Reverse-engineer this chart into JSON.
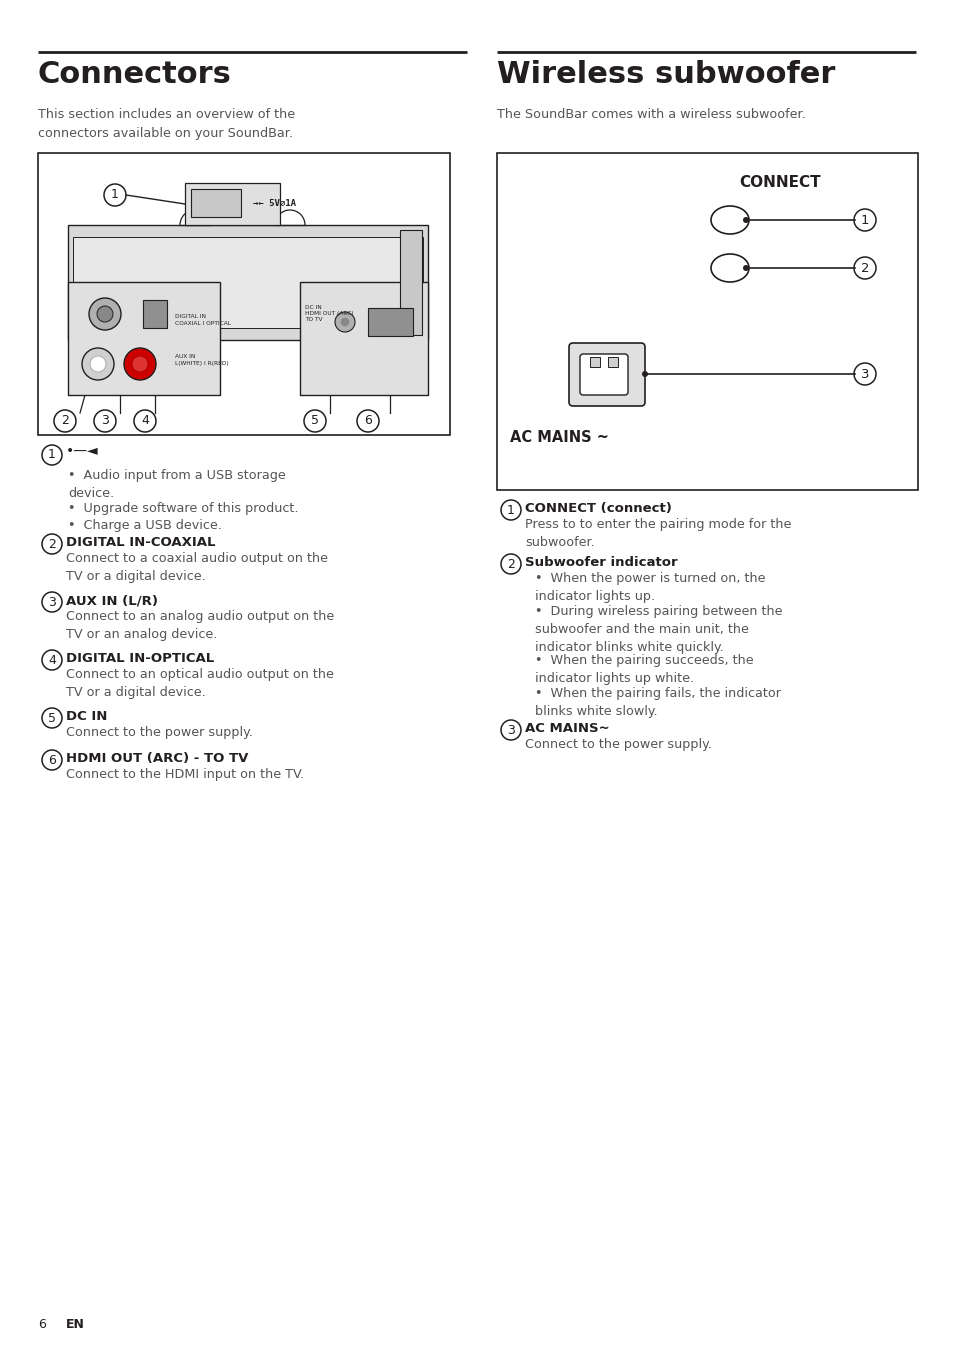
{
  "bg_color": "#ffffff",
  "text_color": "#231f20",
  "gray_text": "#555555",
  "line_color": "#231f20",
  "left_title": "Connectors",
  "right_title": "Wireless subwoofer",
  "left_subtitle": "This section includes an overview of the\nconnectors available on your SoundBar.",
  "right_subtitle": "The SoundBar comes with a wireless subwoofer.",
  "connect_label": "CONNECT",
  "ac_mains_label": "AC MAINS ~",
  "footer_num": "6",
  "footer_en": "EN",
  "usb_symbol": "•—",
  "item1_bullets": [
    "Audio input from a USB storage\ndevice.",
    "Upgrade software of this product.",
    "Charge a USB device."
  ],
  "item2_title": "DIGITAL IN-COAXIAL",
  "item2_body": "Connect to a coaxial audio output on the\nTV or a digital device.",
  "item3_title": "AUX IN (L/R)",
  "item3_body": "Connect to an analog audio output on the\nTV or an analog device.",
  "item4_title": "DIGITAL IN-OPTICAL",
  "item4_body": "Connect to an optical audio output on the\nTV or a digital device.",
  "item5_title": "DC IN",
  "item5_body": "Connect to the power supply.",
  "item6_title": "HDMI OUT (ARC) - TO TV",
  "item6_body": "Connect to the HDMI input on the TV.",
  "r_item1_title": "CONNECT (connect)",
  "r_item1_body": "Press to to enter the pairing mode for the\nsubwoofer.",
  "r_item2_title": "Subwoofer indicator",
  "r_item2_bullets": [
    "When the power is turned on, the\nindicator lights up.",
    "During wireless pairing between the\nsubwoofer and the main unit, the\nindicator blinks white quickly.",
    "When the pairing succeeds, the\nindicator lights up white.",
    "When the pairing fails, the indicator\nblinks white slowly."
  ],
  "r_item3_title": "AC MAINS~",
  "r_item3_body": "Connect to the power supply."
}
